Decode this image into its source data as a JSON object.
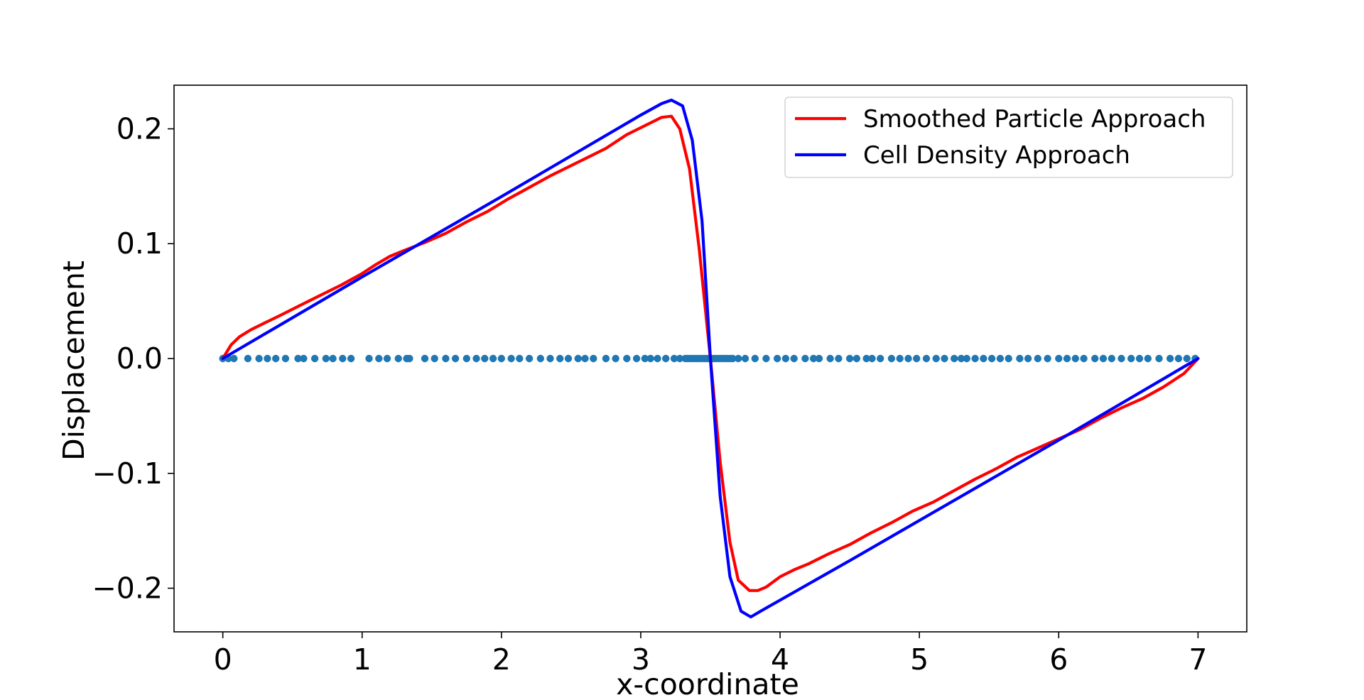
{
  "chart_data": {
    "type": "line",
    "title": "",
    "xlabel": "x-coordinate",
    "ylabel": "Displacement",
    "xlim": [
      -0.35,
      7.35
    ],
    "ylim": [
      -0.238,
      0.238
    ],
    "xticks": [
      0,
      1,
      2,
      3,
      4,
      5,
      6,
      7
    ],
    "xtick_labels": [
      "0",
      "1",
      "2",
      "3",
      "4",
      "5",
      "6",
      "7"
    ],
    "yticks": [
      -0.2,
      -0.1,
      0.0,
      0.1,
      0.2
    ],
    "ytick_labels": [
      "−0.2",
      "−0.1",
      "0.0",
      "0.1",
      "0.2"
    ],
    "grid": false,
    "legend_position": "top-right",
    "series": [
      {
        "name": "Smoothed Particle Approach",
        "color": "#ff0000",
        "x": [
          0,
          0.06,
          0.12,
          0.2,
          0.3,
          0.42,
          0.55,
          0.7,
          0.85,
          1.0,
          1.1,
          1.2,
          1.3,
          1.45,
          1.6,
          1.75,
          1.9,
          2.05,
          2.2,
          2.35,
          2.5,
          2.65,
          2.75,
          2.9,
          3.05,
          3.15,
          3.22,
          3.28,
          3.35,
          3.42,
          3.5,
          3.57,
          3.64,
          3.7,
          3.78,
          3.84,
          3.9,
          4.0,
          4.1,
          4.2,
          4.35,
          4.5,
          4.65,
          4.8,
          4.95,
          5.1,
          5.25,
          5.4,
          5.55,
          5.7,
          5.85,
          6.0,
          6.15,
          6.3,
          6.45,
          6.6,
          6.75,
          6.9,
          7.0
        ],
        "y": [
          0,
          0.012,
          0.019,
          0.025,
          0.031,
          0.038,
          0.046,
          0.055,
          0.064,
          0.074,
          0.082,
          0.089,
          0.094,
          0.101,
          0.109,
          0.119,
          0.128,
          0.139,
          0.149,
          0.159,
          0.168,
          0.177,
          0.183,
          0.195,
          0.204,
          0.21,
          0.211,
          0.2,
          0.165,
          0.095,
          0.0,
          -0.09,
          -0.16,
          -0.193,
          -0.202,
          -0.202,
          -0.199,
          -0.19,
          -0.184,
          -0.179,
          -0.17,
          -0.162,
          -0.152,
          -0.143,
          -0.133,
          -0.125,
          -0.115,
          -0.105,
          -0.096,
          -0.086,
          -0.078,
          -0.07,
          -0.062,
          -0.052,
          -0.043,
          -0.035,
          -0.025,
          -0.013,
          0
        ]
      },
      {
        "name": "Cell Density Approach",
        "color": "#0000ff",
        "x": [
          0,
          1.0,
          2.0,
          3.0,
          3.15,
          3.22,
          3.3,
          3.37,
          3.44,
          3.5,
          3.57,
          3.64,
          3.72,
          3.79,
          3.86,
          4.5,
          5.0,
          6.0,
          7.0
        ],
        "y": [
          0,
          0.071,
          0.141,
          0.212,
          0.222,
          0.225,
          0.22,
          0.19,
          0.12,
          0.0,
          -0.12,
          -0.19,
          -0.22,
          -0.225,
          -0.22,
          -0.176,
          -0.141,
          -0.071,
          0
        ]
      }
    ],
    "scatter": {
      "color": "#1f77b4",
      "x": [
        0.0,
        0.04,
        0.08,
        0.18,
        0.26,
        0.32,
        0.38,
        0.45,
        0.54,
        0.58,
        0.66,
        0.74,
        0.79,
        0.86,
        0.92,
        1.05,
        1.12,
        1.18,
        1.26,
        1.32,
        1.34,
        1.45,
        1.52,
        1.6,
        1.67,
        1.75,
        1.82,
        1.88,
        1.94,
        2.0,
        2.07,
        2.13,
        2.2,
        2.28,
        2.35,
        2.42,
        2.48,
        2.55,
        2.6,
        2.66,
        2.75,
        2.82,
        2.9,
        2.97,
        3.03,
        3.07,
        3.12,
        3.18,
        3.24,
        3.28,
        3.32,
        3.34,
        3.36,
        3.38,
        3.4,
        3.42,
        3.44,
        3.46,
        3.48,
        3.5,
        3.52,
        3.54,
        3.56,
        3.58,
        3.6,
        3.62,
        3.64,
        3.66,
        3.7,
        3.75,
        3.82,
        3.9,
        3.98,
        4.04,
        4.1,
        4.18,
        4.24,
        4.28,
        4.36,
        4.42,
        4.5,
        4.55,
        4.62,
        4.66,
        4.72,
        4.8,
        4.86,
        4.92,
        4.98,
        5.05,
        5.12,
        5.18,
        5.25,
        5.3,
        5.34,
        5.4,
        5.46,
        5.52,
        5.58,
        5.64,
        5.72,
        5.78,
        5.85,
        5.92,
        6.0,
        6.06,
        6.12,
        6.18,
        6.26,
        6.32,
        6.38,
        6.45,
        6.52,
        6.58,
        6.64,
        6.72,
        6.8,
        6.86,
        6.92,
        6.98
      ],
      "y": 0
    }
  }
}
